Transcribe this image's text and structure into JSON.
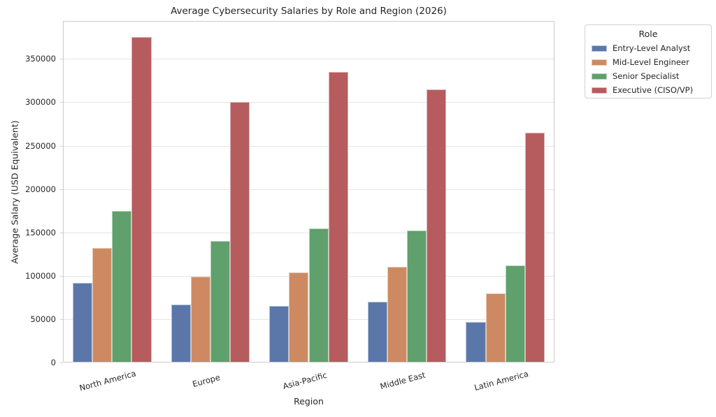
{
  "chart_data": {
    "type": "bar",
    "title": "Average Cybersecurity Salaries by Role and Region (2026)",
    "xlabel": "Region",
    "ylabel": "Average Salary (USD Equivalent)",
    "categories": [
      "North America",
      "Europe",
      "Asia-Pacific",
      "Middle East",
      "Latin America"
    ],
    "series": [
      {
        "name": "Entry-Level Analyst",
        "color": "#5B77AA",
        "values": [
          92000,
          67000,
          65000,
          70000,
          47000
        ]
      },
      {
        "name": "Mid-Level Engineer",
        "color": "#CD8A62",
        "values": [
          132000,
          99000,
          104000,
          110000,
          80000
        ]
      },
      {
        "name": "Senior Specialist",
        "color": "#5FA06C",
        "values": [
          175000,
          140000,
          155000,
          152000,
          112000
        ]
      },
      {
        "name": "Executive (CISO/VP)",
        "color": "#B65C5E",
        "values": [
          375000,
          300000,
          335000,
          315000,
          265000
        ]
      }
    ],
    "legend_title": "Role",
    "legend_position": "outside upper right",
    "ylim": [
      0,
      393750
    ],
    "yticks": [
      0,
      50000,
      100000,
      150000,
      200000,
      250000,
      300000,
      350000
    ],
    "grid": true
  }
}
